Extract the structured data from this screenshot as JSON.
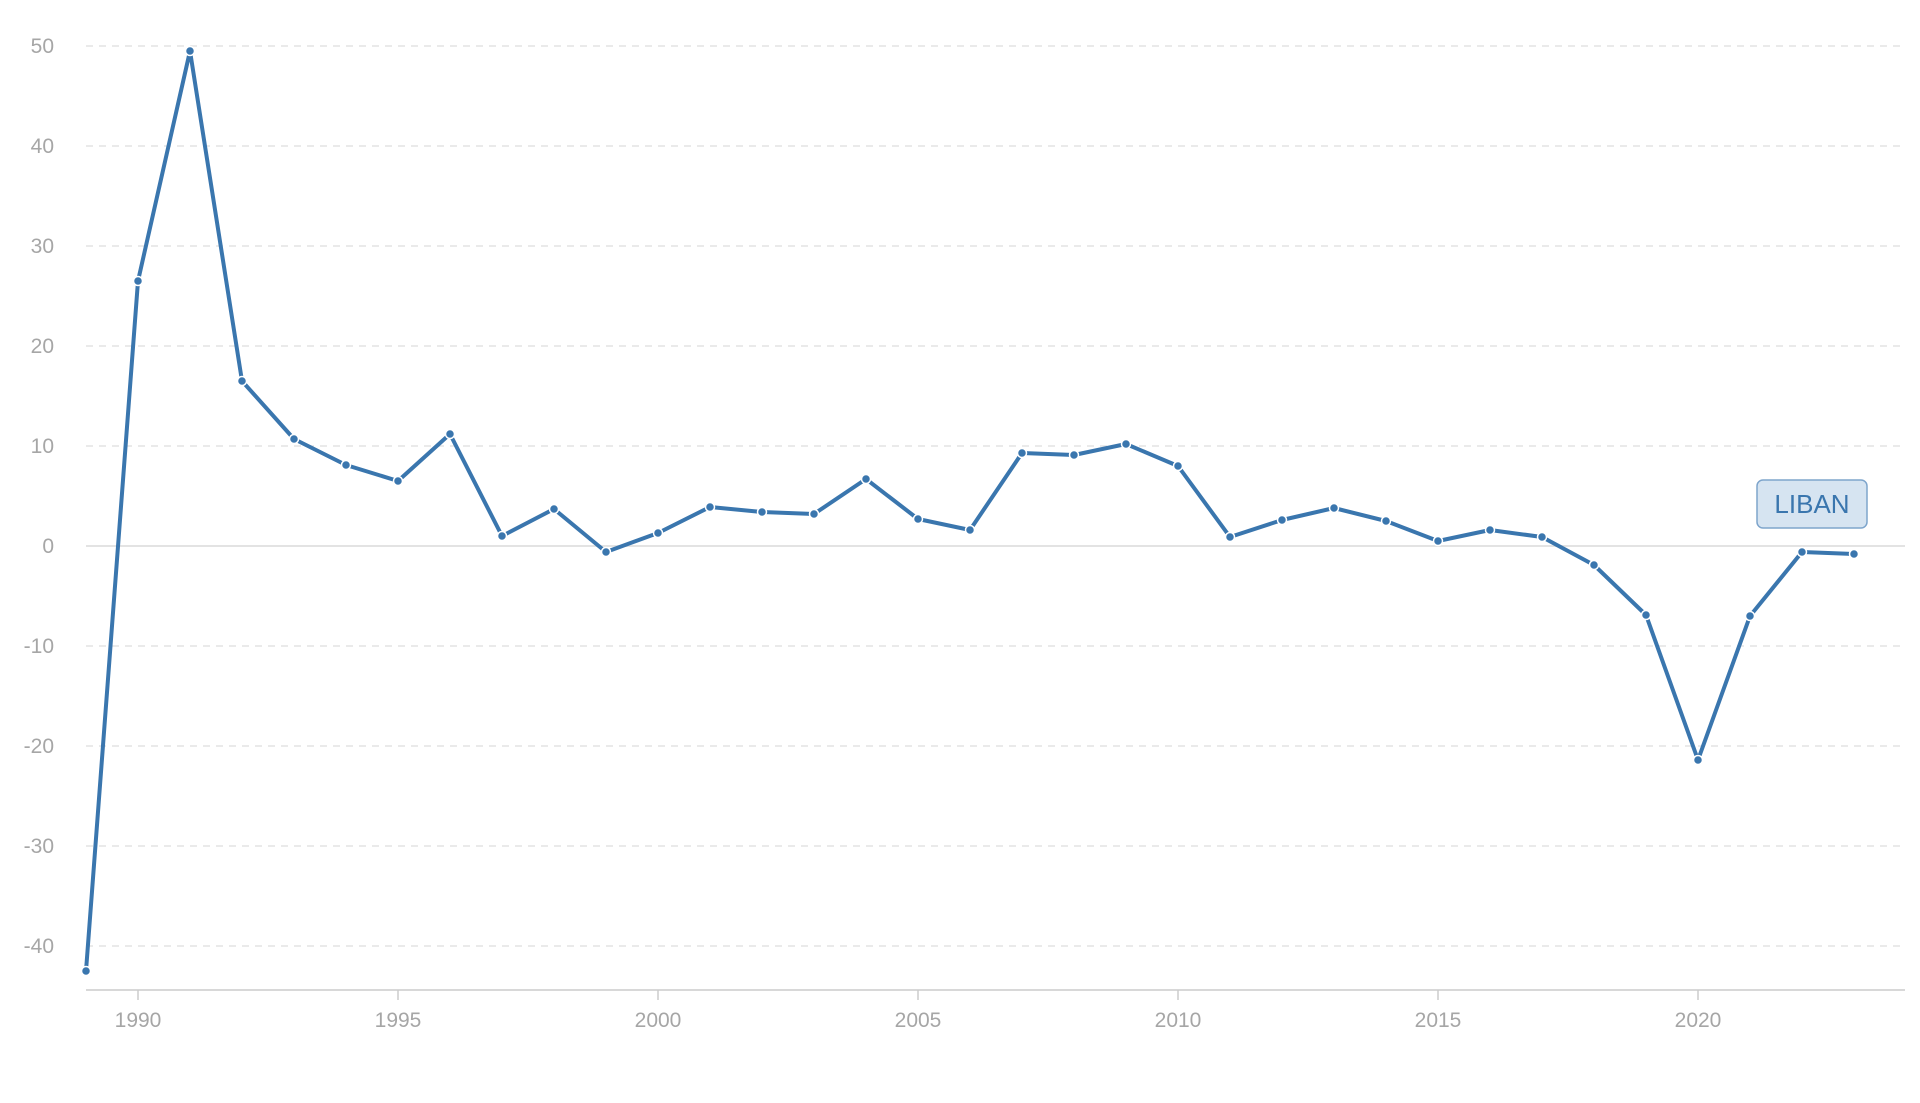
{
  "chart_data": {
    "type": "line",
    "title": "",
    "xlabel": "",
    "ylabel": "",
    "x": [
      1989,
      1990,
      1991,
      1992,
      1993,
      1994,
      1995,
      1996,
      1997,
      1998,
      1999,
      2000,
      2001,
      2002,
      2003,
      2004,
      2005,
      2006,
      2007,
      2008,
      2009,
      2010,
      2011,
      2012,
      2013,
      2014,
      2015,
      2016,
      2017,
      2018,
      2019,
      2020,
      2021,
      2022,
      2023
    ],
    "series": [
      {
        "name": "LIBAN",
        "values": [
          -42.5,
          26.5,
          49.5,
          16.5,
          10.7,
          8.1,
          6.5,
          11.2,
          1.0,
          3.7,
          -0.6,
          1.3,
          3.9,
          3.4,
          3.2,
          6.7,
          2.7,
          1.6,
          9.3,
          9.1,
          10.2,
          8.0,
          0.9,
          2.6,
          3.8,
          2.5,
          0.5,
          1.6,
          0.9,
          -1.9,
          -6.9,
          -21.4,
          -7.0,
          -0.6,
          -0.8
        ],
        "color": "#3a76ae"
      }
    ],
    "xlim": [
      1989,
      2023
    ],
    "ylim": [
      -45,
      50
    ],
    "x_ticks": [
      1990,
      1995,
      2000,
      2005,
      2010,
      2015,
      2020
    ],
    "y_ticks": [
      -40,
      -30,
      -20,
      -10,
      0,
      10,
      20,
      30,
      40,
      50
    ],
    "grid": true,
    "grid_style": "dashed-horizontal",
    "legend": "end-of-line-label",
    "colors": {
      "line": "#3a76ae",
      "grid": "#e3e3e3",
      "zero_line": "#e3e3e3",
      "tick_text": "#a6a6a6",
      "label_fill": "#d6e4f1",
      "label_stroke": "#7ea5cc"
    }
  }
}
